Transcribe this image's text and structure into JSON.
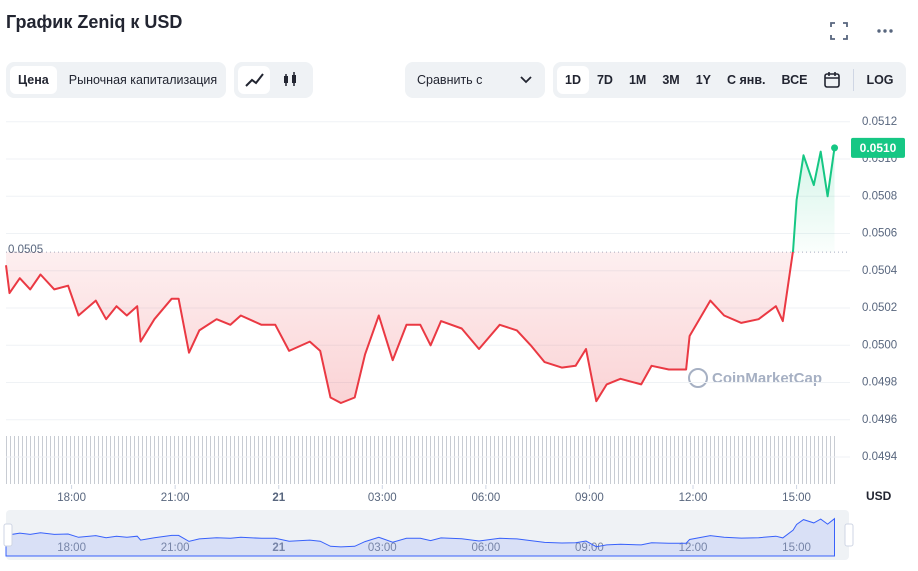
{
  "header": {
    "title": "График Zeniq к USD"
  },
  "toolbar": {
    "tabs": [
      "Цена",
      "Рыночная капитализация"
    ],
    "compare": "Сравнить с",
    "ranges": [
      "1D",
      "7D",
      "1M",
      "3M",
      "1Y",
      "С янв.",
      "ВСЕ"
    ],
    "log": "LOG"
  },
  "watermark": "CoinMarketCap",
  "chart_data": {
    "type": "line",
    "x": [
      16.1,
      16.2,
      16.5,
      16.8,
      17.1,
      17.5,
      17.9,
      18.2,
      18.7,
      19.0,
      19.3,
      19.6,
      19.9,
      20.0,
      20.4,
      20.9,
      21.1,
      21.4,
      21.7,
      22.2,
      22.6,
      22.9,
      23.5,
      23.9,
      24.3,
      24.9,
      25.2,
      25.5,
      25.8,
      26.2,
      26.5,
      26.9,
      27.3,
      27.7,
      28.1,
      28.4,
      28.7,
      29.3,
      29.8,
      30.4,
      30.9,
      31.3,
      31.7,
      32.2,
      32.6,
      32.9,
      33.2,
      33.5,
      33.9,
      34.5,
      34.8,
      35.3,
      35.8,
      35.9,
      36.5,
      36.9,
      37.4,
      37.9,
      38.4,
      38.6,
      38.9,
      39.0,
      39.2,
      39.5,
      39.7,
      39.9,
      40.1
    ],
    "series": [
      {
        "colors": {
          "above": "#16c784",
          "below": "#ea3943"
        },
        "values": [
          0.05043,
          0.05028,
          0.05036,
          0.0503,
          0.05038,
          0.0503,
          0.05032,
          0.05016,
          0.05024,
          0.05014,
          0.05021,
          0.05016,
          0.05021,
          0.05002,
          0.05014,
          0.05025,
          0.05025,
          0.04996,
          0.05008,
          0.05014,
          0.05011,
          0.05016,
          0.05011,
          0.05011,
          0.04997,
          0.05002,
          0.04997,
          0.04972,
          0.04969,
          0.04972,
          0.04995,
          0.05016,
          0.04992,
          0.05011,
          0.05011,
          0.05,
          0.05013,
          0.05009,
          0.04998,
          0.05011,
          0.05008,
          0.05,
          0.04991,
          0.04988,
          0.04989,
          0.04998,
          0.0497,
          0.04979,
          0.04982,
          0.04979,
          0.04989,
          0.04987,
          0.04987,
          0.05005,
          0.05024,
          0.05016,
          0.05012,
          0.05014,
          0.05021,
          0.05013,
          0.05051,
          0.05078,
          0.05102,
          0.05086,
          0.05104,
          0.0508,
          0.05106
        ]
      }
    ],
    "xlim": [
      16.1,
      40.2
    ],
    "xticks": [
      {
        "value": 18,
        "label": "18:00"
      },
      {
        "value": 21,
        "label": "21:00"
      },
      {
        "value": 24,
        "label": "21"
      },
      {
        "value": 27,
        "label": "03:00"
      },
      {
        "value": 30,
        "label": "06:00"
      },
      {
        "value": 33,
        "label": "09:00"
      },
      {
        "value": 36,
        "label": "12:00"
      },
      {
        "value": 39,
        "label": "15:00"
      }
    ],
    "ylim": [
      0.04925,
      0.05129
    ],
    "yticks": [
      0.0494,
      0.0496,
      0.0498,
      {
        "value": 0.05,
        "label": "0.0500"
      },
      0.0502,
      0.0504,
      0.0506,
      0.0508,
      {
        "value": 0.051,
        "label": "0.0510"
      },
      0.0512
    ],
    "grid": true,
    "reference_line": {
      "value": 0.0505,
      "label": "0.0505"
    },
    "last_price_label": "0.0510",
    "y_unit": "USD"
  }
}
